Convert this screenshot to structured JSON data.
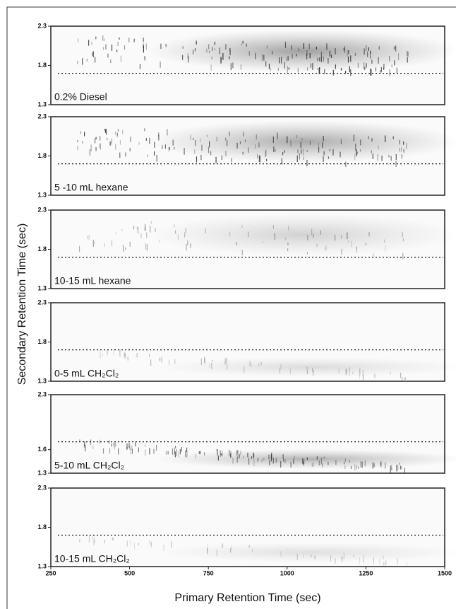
{
  "figure": {
    "xlabel": "Primary Retention Time (sec)",
    "ylabel": "Secondary Retention Time (sec)"
  },
  "chart_data": [
    {
      "type": "heatmap",
      "label": "0.2% Diesel",
      "ylim": [
        1.3,
        2.3
      ],
      "yticks": [
        1.3,
        1.8,
        2.3
      ],
      "xlim": [
        250,
        1500
      ],
      "reference_y": 1.7
    },
    {
      "type": "heatmap",
      "label": "5 -10 mL hexane",
      "ylim": [
        1.3,
        2.3
      ],
      "yticks": [
        1.3,
        1.8,
        2.3
      ],
      "xlim": [
        250,
        1500
      ],
      "reference_y": 1.7
    },
    {
      "type": "heatmap",
      "label": "10-15 mL hexane",
      "ylim": [
        1.3,
        2.3
      ],
      "yticks": [
        1.3,
        1.8,
        2.3
      ],
      "xlim": [
        250,
        1500
      ],
      "reference_y": 1.7
    },
    {
      "type": "heatmap",
      "label": "0-5 mL CH₂Cl₂",
      "ylim": [
        1.3,
        2.3
      ],
      "yticks": [
        1.3,
        1.8,
        2.3
      ],
      "xlim": [
        250,
        1500
      ],
      "reference_y": 1.7
    },
    {
      "type": "heatmap",
      "label": "5-10 mL CH₂Cl₂",
      "ylim": [
        1.3,
        2.3
      ],
      "yticks": [
        1.3,
        1.6,
        2.3
      ],
      "xlim": [
        250,
        1500
      ],
      "reference_y": 1.7
    },
    {
      "type": "heatmap",
      "label": "10-15 mL CH₂Cl₂",
      "ylim": [
        1.3,
        2.3
      ],
      "yticks": [
        1.3,
        1.8,
        2.3
      ],
      "xlim": [
        250,
        1500
      ],
      "xticks": [
        250,
        500,
        750,
        1000,
        1250,
        1500
      ],
      "reference_y": 1.7
    }
  ]
}
